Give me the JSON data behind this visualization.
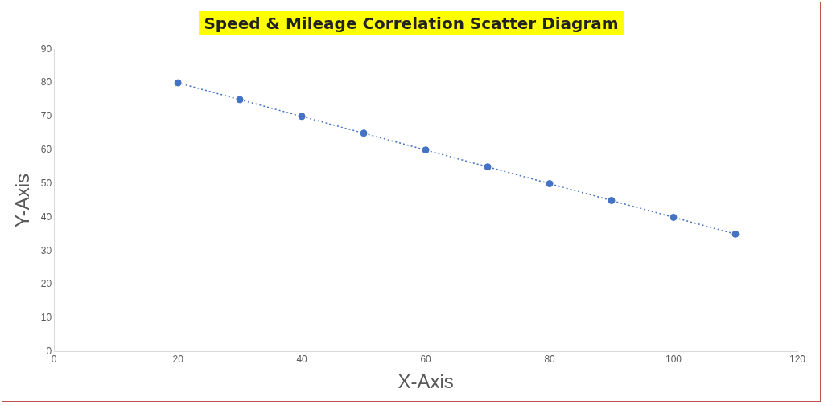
{
  "chart_data": {
    "type": "scatter",
    "title": "Speed & Mileage Correlation Scatter Diagram",
    "xlabel": "X-Axis",
    "ylabel": "Y-Axis",
    "x": [
      20,
      30,
      40,
      50,
      60,
      70,
      80,
      90,
      100,
      110
    ],
    "series": [
      {
        "type": "scatter",
        "color": "#4472c4",
        "values": [
          80,
          75,
          70,
          65,
          60,
          55,
          50,
          45,
          40,
          35
        ],
        "marker": "circle"
      },
      {
        "type": "line",
        "x": [
          20,
          110
        ],
        "values": [
          80,
          35
        ],
        "color": "#4472c4",
        "line_style": "dotted",
        "marker": "none"
      }
    ],
    "xlim": [
      0,
      120
    ],
    "xticks": [
      0,
      20,
      40,
      60,
      80,
      100,
      120
    ],
    "ylim": [
      0,
      90
    ],
    "yticks": [
      0,
      10,
      20,
      30,
      40,
      50,
      60,
      70,
      80,
      90
    ],
    "grid": false,
    "legend": false
  }
}
